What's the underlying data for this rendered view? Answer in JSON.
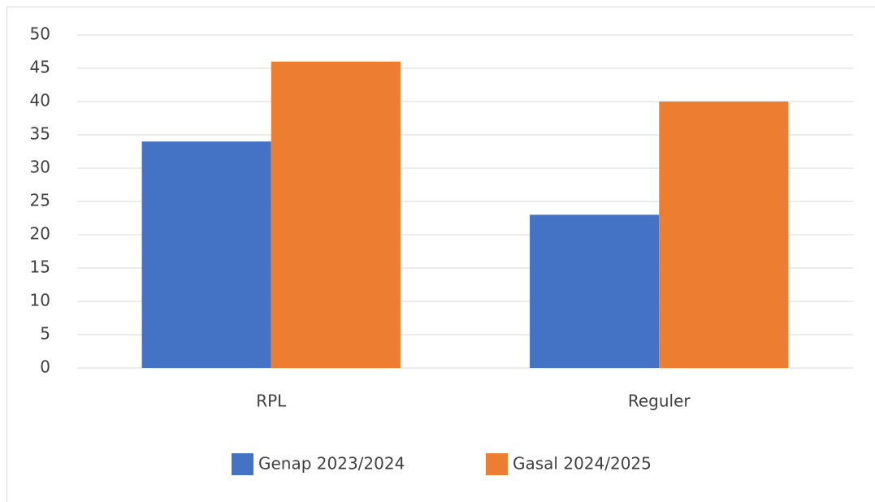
{
  "chart_data": {
    "type": "bar",
    "categories": [
      "RPL",
      "Reguler"
    ],
    "series": [
      {
        "name": "Genap 2023/2024",
        "color": "#4472c4",
        "values": [
          34,
          23
        ]
      },
      {
        "name": "Gasal 2024/2025",
        "color": "#ed7d31",
        "values": [
          46,
          40
        ]
      }
    ],
    "ylim": [
      0,
      50
    ],
    "yticks": [
      0,
      5,
      10,
      15,
      20,
      25,
      30,
      35,
      40,
      45,
      50
    ],
    "grid": true,
    "legend": "bottom"
  }
}
